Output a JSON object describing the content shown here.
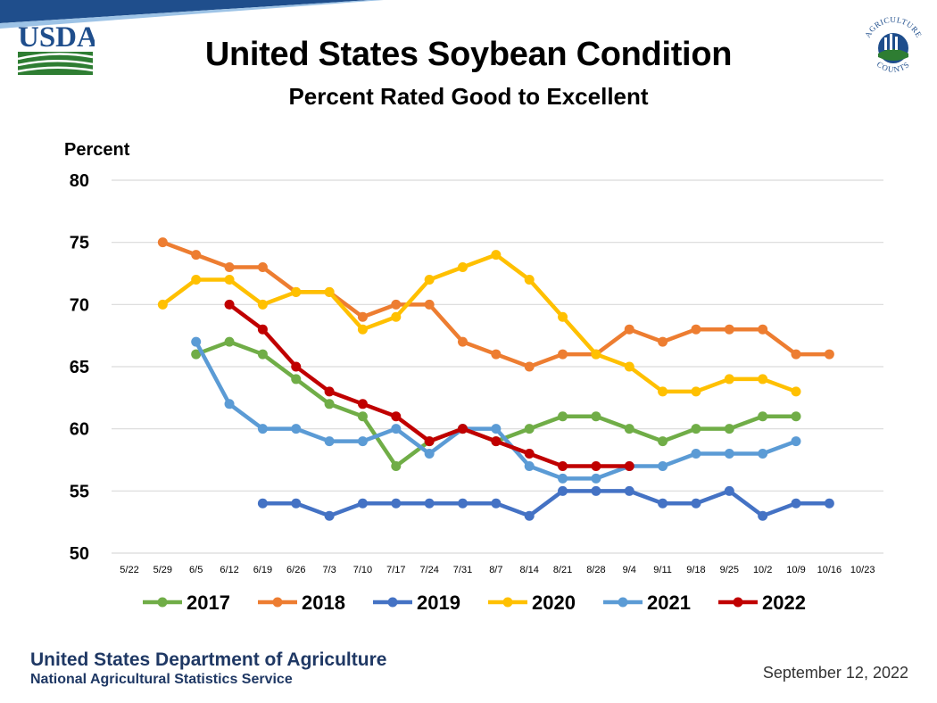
{
  "header": {
    "title": "United States Soybean Condition",
    "subtitle": "Percent Rated Good to Excellent",
    "usda_logo_text": "USDA",
    "badge_top_text": "AGRICULTURE",
    "badge_bottom_text": "COUNTS"
  },
  "footer": {
    "org": "United States Department of Agriculture",
    "sub": "National Agricultural Statistics Service",
    "date": "September 12, 2022"
  },
  "colors": {
    "grid": "#d9d9d9",
    "footer_text": "#1f3864",
    "brand_blue": "#1f4e8c",
    "brand_green": "#2e7d32"
  },
  "chart_data": {
    "type": "line",
    "title": "United States Soybean Condition",
    "subtitle": "Percent Rated Good to Excellent",
    "ylabel": "Percent",
    "xlabel": "",
    "ylim": [
      50,
      80
    ],
    "yticks": [
      50,
      55,
      60,
      65,
      70,
      75,
      80
    ],
    "grid": true,
    "legend_position": "bottom",
    "categories": [
      "5/22",
      "5/29",
      "6/5",
      "6/12",
      "6/19",
      "6/26",
      "7/3",
      "7/10",
      "7/17",
      "7/24",
      "7/31",
      "8/7",
      "8/14",
      "8/21",
      "8/28",
      "9/4",
      "9/11",
      "9/18",
      "9/25",
      "10/2",
      "10/9",
      "10/16",
      "10/23"
    ],
    "series": [
      {
        "name": "2017",
        "color": "#70ad47",
        "values": [
          null,
          null,
          66,
          67,
          66,
          64,
          62,
          61,
          57,
          59,
          60,
          59,
          60,
          61,
          61,
          60,
          59,
          60,
          60,
          61,
          61,
          null,
          null
        ]
      },
      {
        "name": "2018",
        "color": "#ed7d31",
        "values": [
          null,
          75,
          74,
          73,
          73,
          71,
          71,
          69,
          70,
          70,
          67,
          66,
          65,
          66,
          66,
          68,
          67,
          68,
          68,
          68,
          66,
          66,
          null
        ]
      },
      {
        "name": "2019",
        "color": "#4472c4",
        "values": [
          null,
          null,
          null,
          null,
          54,
          54,
          53,
          54,
          54,
          54,
          54,
          54,
          53,
          55,
          55,
          55,
          54,
          54,
          55,
          53,
          54,
          54,
          null
        ]
      },
      {
        "name": "2020",
        "color": "#ffc000",
        "values": [
          null,
          70,
          72,
          72,
          70,
          71,
          71,
          68,
          69,
          72,
          73,
          74,
          72,
          69,
          66,
          65,
          63,
          63,
          64,
          64,
          63,
          null,
          null
        ]
      },
      {
        "name": "2021",
        "color": "#5b9bd5",
        "values": [
          null,
          null,
          67,
          62,
          60,
          60,
          59,
          59,
          60,
          58,
          60,
          60,
          57,
          56,
          56,
          57,
          57,
          58,
          58,
          58,
          59,
          null,
          null
        ]
      },
      {
        "name": "2022",
        "color": "#c00000",
        "values": [
          null,
          null,
          null,
          70,
          68,
          65,
          63,
          62,
          61,
          59,
          60,
          59,
          58,
          57,
          57,
          57,
          null,
          null,
          null,
          null,
          null,
          null,
          null
        ]
      }
    ]
  }
}
